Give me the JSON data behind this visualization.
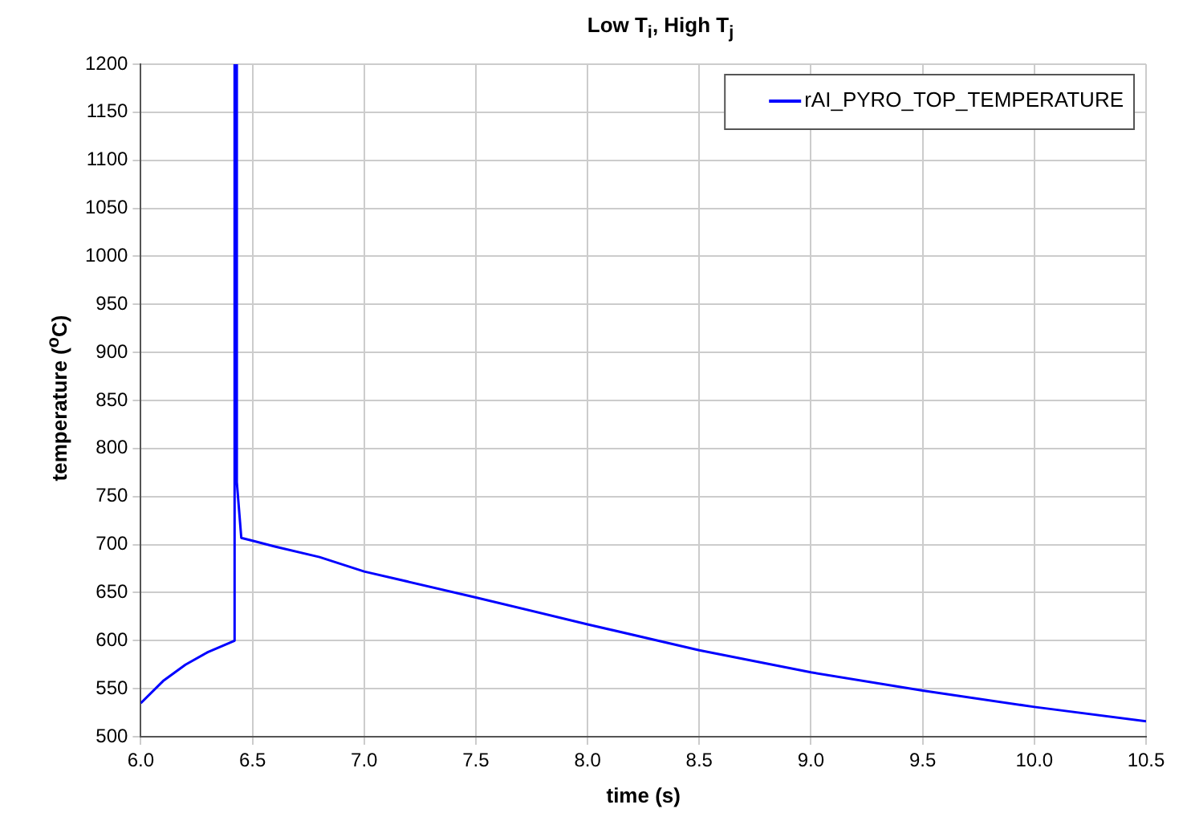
{
  "chart_data": {
    "type": "line",
    "title": "Low T$_{i}$, High T$_{j}$",
    "xlabel": "time (s)",
    "ylabel": "temperature ($^{o}$C)",
    "x": [
      6.0,
      6.1,
      6.2,
      6.3,
      6.42,
      6.42,
      6.43,
      6.43,
      6.45,
      6.5,
      6.6,
      6.8,
      7.0,
      7.5,
      8.0,
      8.5,
      9.0,
      9.5,
      10.0,
      10.5
    ],
    "series": [
      {
        "name": "rAI_PYRO_TOP_TEMPERATURE",
        "color": "#0000ff",
        "values": [
          535,
          558,
          575,
          588,
          600,
          1200,
          1200,
          765,
          707,
          704,
          698,
          687,
          672,
          645,
          617,
          590,
          567,
          548,
          531,
          516
        ]
      }
    ],
    "xlim": [
      6.0,
      10.5
    ],
    "xticks": [
      {
        "value": 6,
        "label": "6.0"
      },
      6.5,
      {
        "value": 7,
        "label": "7.0"
      },
      7.5,
      {
        "value": 8,
        "label": "8.0"
      },
      8.5,
      {
        "value": 9,
        "label": "9.0"
      },
      9.5,
      {
        "value": 10,
        "label": "10.0"
      },
      10.5
    ],
    "ylim": [
      500,
      1200
    ],
    "yticks": [
      500,
      550,
      600,
      650,
      700,
      750,
      800,
      850,
      900,
      950,
      1000,
      1050,
      1100,
      1150,
      1200
    ],
    "grid": true,
    "legend": "top right",
    "marker": "none",
    "line_style": "solid"
  }
}
